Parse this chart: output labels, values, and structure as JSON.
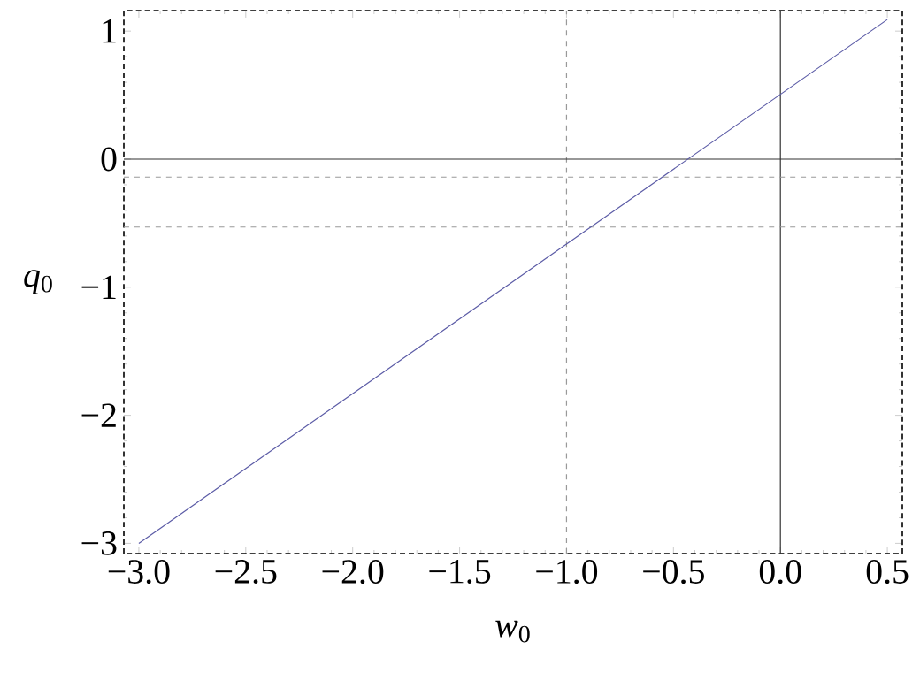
{
  "chart_data": {
    "type": "line",
    "xlabel": "*w*$_{0}$",
    "ylabel": "*q*$_{0}$",
    "x": [
      -3.0,
      0.5
    ],
    "series": [
      {
        "color": "#5b5ba6",
        "values": [
          -3.0,
          1.09
        ]
      }
    ],
    "xlim": [
      -3.07,
      0.57
    ],
    "ylim": [
      -3.08,
      1.16
    ],
    "xticks": [
      {
        "value": -3.0,
        "label": "−3.0"
      },
      {
        "value": -2.5,
        "label": "−2.5"
      },
      {
        "value": -2.0,
        "label": "−2.0"
      },
      {
        "value": -1.5,
        "label": "−1.5"
      },
      {
        "value": -1.0,
        "label": "−1.0"
      },
      {
        "value": -0.5,
        "label": "−0.5"
      },
      {
        "value": 0.0,
        "label": "0.0"
      },
      {
        "value": 0.5,
        "label": "0.5"
      }
    ],
    "yticks": [
      {
        "value": -3,
        "label": "−3"
      },
      {
        "value": -2,
        "label": "−2"
      },
      {
        "value": -1,
        "label": "−1"
      },
      0,
      1
    ],
    "ref_lines": [
      {
        "axis": "x",
        "value": -1.0,
        "line_style": "dashed",
        "color": "#999999"
      },
      {
        "axis": "x",
        "value": 0.0,
        "line_style": "solid",
        "color": "#333333"
      },
      {
        "axis": "y",
        "value": 0.0,
        "line_style": "solid",
        "color": "#333333"
      },
      {
        "axis": "y",
        "value": -0.14,
        "line_style": "dashed",
        "color": "#999999"
      },
      {
        "axis": "y",
        "value": -0.53,
        "line_style": "dashed",
        "color": "#999999"
      }
    ],
    "marker": "none",
    "line_style": "solid"
  }
}
